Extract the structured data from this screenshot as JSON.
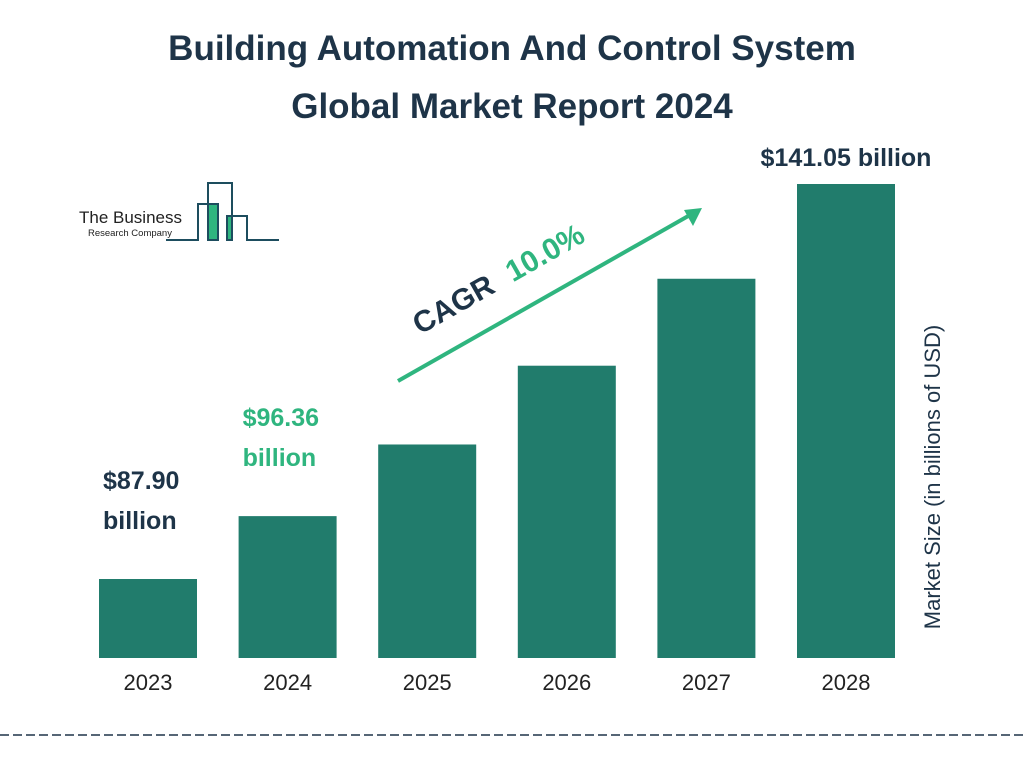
{
  "colors": {
    "bar": "#217c6c",
    "navy": "#1e3448",
    "accent": "#2fb57f"
  },
  "logo": {
    "line1": "The Business",
    "line2": "Research Company"
  },
  "chart_data": {
    "type": "bar",
    "title": "Building Automation And Control System Global Market Report 2024",
    "title_lines": [
      "Building Automation And Control System",
      "Global Market Report 2024"
    ],
    "categories": [
      "2023",
      "2024",
      "2025",
      "2026",
      "2027",
      "2028"
    ],
    "values": [
      87.9,
      96.36,
      106.0,
      116.6,
      128.3,
      141.05
    ],
    "data_labels": [
      {
        "index": 0,
        "lines": [
          "$87.90",
          "billion"
        ],
        "color": "navy"
      },
      {
        "index": 1,
        "lines": [
          "$96.36",
          "billion"
        ],
        "color": "accent"
      },
      {
        "index": 5,
        "lines": [
          "$141.05 billion"
        ],
        "color": "navy"
      }
    ],
    "ylabel": "Market Size (in billions of USD)",
    "xlabel": "",
    "annotation": {
      "prefix": "CAGR",
      "value": "10.0%"
    },
    "grid": false,
    "legend": "none"
  }
}
